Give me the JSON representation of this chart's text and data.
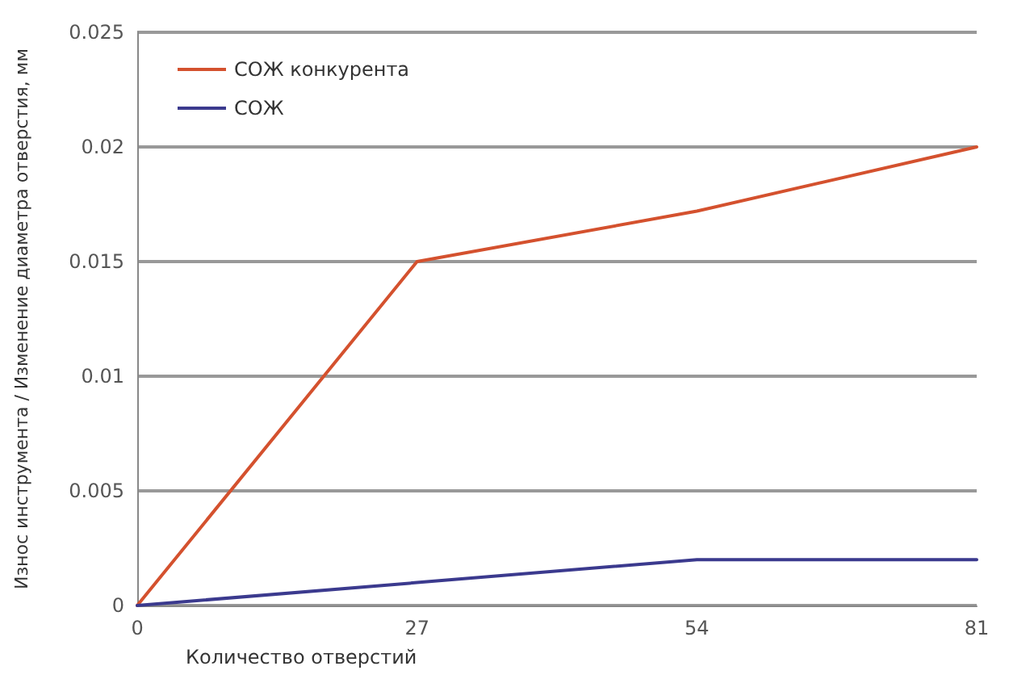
{
  "chart_data": {
    "type": "line",
    "xlabel": "Количество отверстий",
    "ylabel": "Износ инструмента / Изменение диаметра отверстия, мм",
    "x": [
      0,
      27,
      54,
      81
    ],
    "series": [
      {
        "name": "СОЖ конкурента",
        "color": "#d4512e",
        "values": [
          0,
          0.015,
          0.0172,
          0.02
        ]
      },
      {
        "name": "СОЖ",
        "color": "#3b3a8e",
        "values": [
          0,
          0.001,
          0.002,
          0.002
        ]
      }
    ],
    "xlim": [
      0,
      81
    ],
    "xticks": [
      0,
      27,
      54,
      81
    ],
    "ylim": [
      0,
      0.025
    ],
    "yticks": [
      0,
      0.005,
      0.01,
      0.015,
      0.02,
      0.025
    ],
    "grid": "y",
    "legend": "top left",
    "marker": "none",
    "line_style": "solid"
  }
}
